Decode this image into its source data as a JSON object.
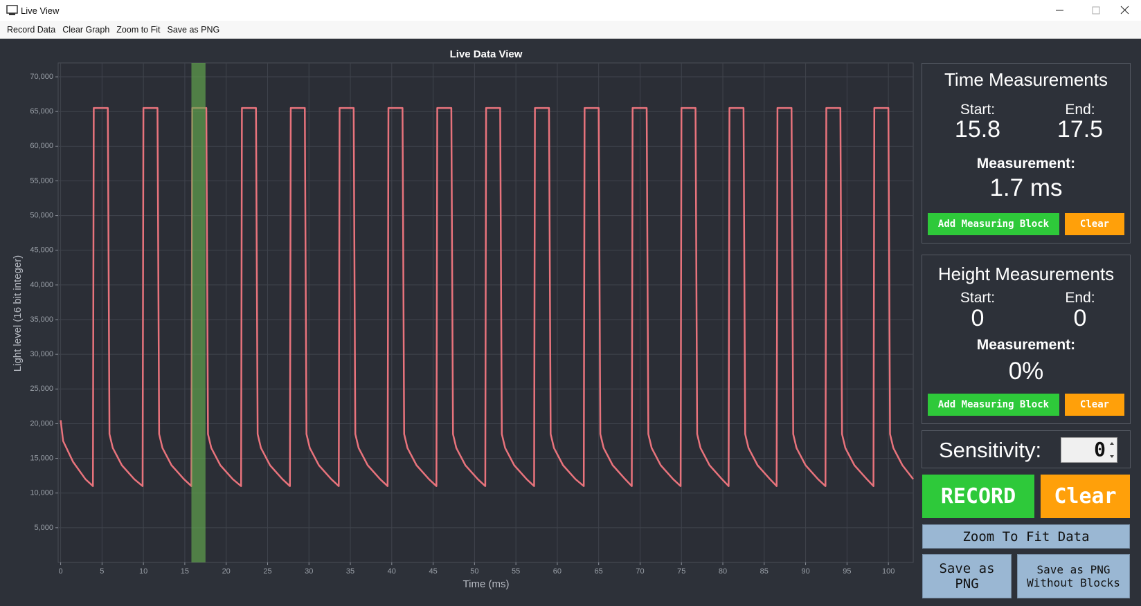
{
  "window": {
    "title": "Live View"
  },
  "menu": [
    "Record Data",
    "Clear Graph",
    "Zoom to Fit",
    "Save as PNG"
  ],
  "chart_data": {
    "type": "line",
    "title": "Live Data View",
    "x_label": "Time (ms)",
    "y_label": "Light level (16 bit integer)",
    "color": "#e8737c",
    "grid": true,
    "xlim": [
      -0.3,
      103
    ],
    "ylim": [
      0,
      72000
    ],
    "xticks": [
      0,
      5,
      10,
      15,
      20,
      25,
      30,
      35,
      40,
      45,
      50,
      55,
      60,
      65,
      70,
      75,
      80,
      85,
      90,
      95,
      100
    ],
    "yticks": [
      {
        "value": 5000,
        "label": "5,000"
      },
      {
        "value": 10000,
        "label": "10,000"
      },
      {
        "value": 15000,
        "label": "15,000"
      },
      {
        "value": 20000,
        "label": "20,000"
      },
      {
        "value": 25000,
        "label": "25,000"
      },
      {
        "value": 30000,
        "label": "30,000"
      },
      {
        "value": 35000,
        "label": "35,000"
      },
      {
        "value": 40000,
        "label": "40,000"
      },
      {
        "value": 45000,
        "label": "45,000"
      },
      {
        "value": 50000,
        "label": "50,000"
      },
      {
        "value": 55000,
        "label": "55,000"
      },
      {
        "value": 60000,
        "label": "60,000"
      },
      {
        "value": 65000,
        "label": "65,000"
      },
      {
        "value": 70000,
        "label": "70,000"
      }
    ],
    "x": [
      0,
      0.3,
      1.5,
      3.0,
      3.9,
      4.0,
      5.7,
      5.9,
      6.3,
      7.4,
      8.9,
      9.9,
      10.0,
      11.7,
      11.9,
      12.3,
      13.4,
      14.9,
      15.8,
      15.9,
      17.6,
      17.8,
      18.2,
      19.3,
      20.8,
      21.8,
      21.9,
      23.6,
      23.8,
      24.2,
      25.3,
      26.8,
      27.7,
      27.8,
      29.5,
      29.7,
      30.1,
      31.2,
      32.7,
      33.6,
      33.7,
      35.4,
      35.6,
      36.0,
      37.1,
      38.6,
      39.5,
      39.6,
      41.3,
      41.5,
      41.9,
      43.0,
      44.5,
      45.4,
      45.5,
      47.2,
      47.4,
      47.8,
      48.9,
      50.4,
      51.3,
      51.4,
      53.1,
      53.3,
      53.7,
      54.8,
      56.3,
      57.2,
      57.3,
      59.0,
      59.2,
      59.6,
      60.7,
      62.2,
      63.2,
      63.3,
      65.0,
      65.2,
      65.6,
      66.7,
      68.2,
      69.0,
      69.1,
      70.8,
      71.0,
      71.4,
      72.5,
      74.0,
      74.9,
      75.0,
      76.7,
      76.9,
      77.3,
      78.4,
      79.9,
      80.7,
      80.8,
      82.5,
      82.7,
      83.1,
      84.2,
      85.7,
      86.5,
      86.6,
      88.3,
      88.5,
      88.9,
      90.0,
      91.5,
      92.4,
      92.5,
      94.2,
      94.4,
      94.8,
      95.9,
      97.4,
      98.2,
      98.3,
      100.0,
      100.2,
      100.6,
      101.7,
      103.0
    ],
    "values": [
      20500,
      17500,
      14500,
      12000,
      11000,
      65500,
      65500,
      18500,
      16500,
      14000,
      12000,
      11000,
      65500,
      65500,
      18500,
      16500,
      14000,
      12000,
      11000,
      65500,
      65500,
      18500,
      16500,
      14000,
      12000,
      11000,
      65500,
      65500,
      18500,
      16500,
      14000,
      12000,
      11000,
      65500,
      65500,
      18500,
      16500,
      14000,
      12000,
      11000,
      65500,
      65500,
      18500,
      16500,
      14000,
      12000,
      11000,
      65500,
      65500,
      18500,
      16500,
      14000,
      12000,
      11000,
      65500,
      65500,
      18500,
      16500,
      14000,
      12000,
      11000,
      65500,
      65500,
      18500,
      16500,
      14000,
      12000,
      11000,
      65500,
      65500,
      18500,
      16500,
      14000,
      12000,
      11000,
      65500,
      65500,
      18500,
      16500,
      14000,
      12000,
      11000,
      65500,
      65500,
      18500,
      16500,
      14000,
      12000,
      11000,
      65500,
      65500,
      18500,
      16500,
      14000,
      12000,
      11000,
      65500,
      65500,
      18500,
      16500,
      14000,
      12000,
      11000,
      65500,
      65500,
      18500,
      16500,
      14000,
      12000,
      11000,
      65500,
      65500,
      18500,
      16500,
      14000,
      12000,
      11000,
      65500,
      65500,
      18500,
      16500,
      14000,
      12000
    ]
  },
  "time_panel": {
    "title": "Time Measurements",
    "start_label": "Start:",
    "end_label": "End:",
    "start": 15.8,
    "end": 17.5,
    "measurement_label": "Measurement:",
    "measurement": "1.7 ms",
    "add_button": "Add Measuring Block",
    "clear_button": "Clear"
  },
  "height_panel": {
    "title": "Height Measurements",
    "start_label": "Start:",
    "end_label": "End:",
    "start": 0,
    "end": 0,
    "measurement_label": "Measurement:",
    "measurement": "0%",
    "add_button": "Add Measuring Block",
    "clear_button": "Clear"
  },
  "sensitivity": {
    "label": "Sensitivity:",
    "value": 0
  },
  "buttons": {
    "record": "RECORD",
    "clear": "Clear",
    "zoom": "Zoom To Fit Data",
    "save_png": "Save as PNG",
    "save_png_no_blocks": "Save as PNG Without Blocks"
  }
}
